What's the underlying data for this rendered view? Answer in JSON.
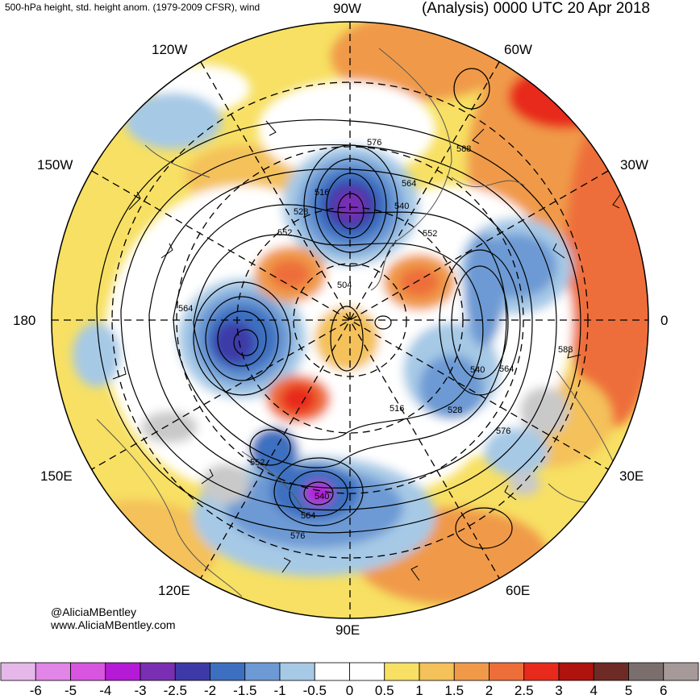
{
  "header": {
    "left_title": "500-hPa height, std. height anom. (1979-2009 CFSR), wind",
    "right_title": "(Analysis) 0000 UTC 20 Apr 2018"
  },
  "longitude_labels": {
    "l90w": "90W",
    "l60w": "60W",
    "l120w": "120W",
    "l30w": "30W",
    "l150w": "150W",
    "l180": "180",
    "l0": "0",
    "l150e": "150E",
    "l30e": "30E",
    "l120e": "120E",
    "l60e": "60E",
    "l90e": "90E"
  },
  "contour_labels": [
    "576",
    "588",
    "564",
    "540",
    "516",
    "528",
    "552",
    "552",
    "504",
    "564",
    "588",
    "540",
    "564",
    "528",
    "516",
    "576",
    "552",
    "540",
    "564",
    "576"
  ],
  "credit": {
    "handle": "@AliciaMBentley",
    "website": "www.AliciaMBentley.com"
  },
  "colorbar": {
    "labels": [
      "-6",
      "-5",
      "-4",
      "-3",
      "-2.5",
      "-2",
      "-1.5",
      "-1",
      "-0.5",
      "0",
      "0.5",
      "1",
      "1.5",
      "2",
      "2.5",
      "3",
      "4",
      "5",
      "6"
    ],
    "colors": [
      "#e6b8ea",
      "#e185e6",
      "#d855e0",
      "#b51ad6",
      "#7a2fb3",
      "#3d3aa8",
      "#3c6fc0",
      "#6d9ad4",
      "#a6c9e6",
      "#ffffff",
      "#ffffff",
      "#f7e063",
      "#f4c15a",
      "#f09a49",
      "#ee6e3a",
      "#e82a1c",
      "#b0120e",
      "#6e2a24",
      "#7b6f6d",
      "#a59a99"
    ]
  }
}
